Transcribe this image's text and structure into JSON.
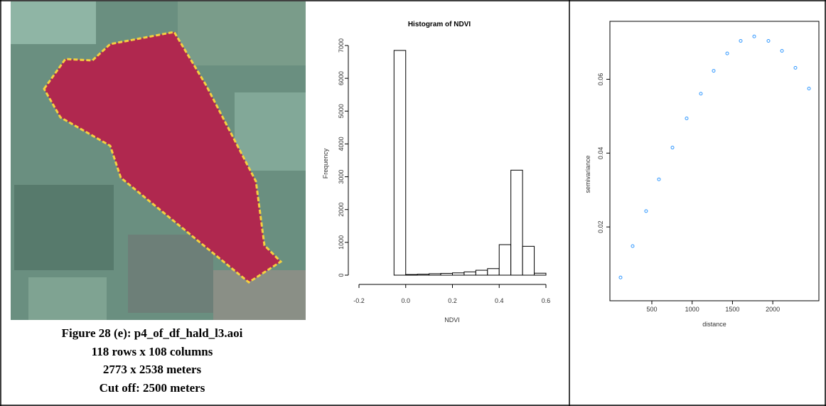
{
  "caption": {
    "lines": [
      "Figure 28 (e): p4_of_df_hald_l3.aoi",
      "118 rows x 108 columns",
      "2773 x 2538 meters",
      "Cut off: 2500 meters"
    ]
  },
  "chart_data": [
    {
      "type": "histogram",
      "title": "Histogram of NDVI",
      "x_label": "NDVI",
      "y_label": "Frequency",
      "bins": [
        -0.2,
        -0.15,
        -0.1,
        -0.05,
        0,
        0.05,
        0.1,
        0.15,
        0.2,
        0.25,
        0.3,
        0.35,
        0.4,
        0.45,
        0.5,
        0.55,
        0.6
      ],
      "values": [
        0,
        0,
        0,
        6850,
        20,
        30,
        45,
        55,
        70,
        100,
        150,
        200,
        930,
        3200,
        880,
        60
      ],
      "color": "#ffffff",
      "xlim": [
        -0.2,
        0.6
      ],
      "ylim": [
        0,
        7000
      ],
      "xticks": [
        -0.2,
        {
          "value": 0,
          "label": "0.0"
        },
        0.2,
        0.4,
        0.6
      ],
      "yticks": [
        0,
        1000,
        2000,
        3000,
        4000,
        5000,
        6000,
        7000
      ]
    },
    {
      "type": "scatter",
      "x_label": "distance",
      "y_label": "semivariance",
      "x": [
        112,
        262,
        429,
        588,
        756,
        932,
        1108,
        1267,
        1435,
        1602,
        1770,
        1946,
        2114,
        2281,
        2449
      ],
      "series": [
        {
          "color": "#3399ff",
          "values": [
            0.0063,
            0.0148,
            0.0243,
            0.0329,
            0.0415,
            0.0494,
            0.0561,
            0.0623,
            0.067,
            0.0704,
            0.0716,
            0.0704,
            0.0677,
            0.0631,
            0.0575
          ]
        }
      ],
      "xlim": [
        -20,
        2572
      ],
      "ylim": [
        0,
        0.0757
      ],
      "xticks": [
        500,
        1000,
        1500,
        2000
      ],
      "yticks": [
        0.02,
        0.04,
        0.06
      ]
    }
  ]
}
